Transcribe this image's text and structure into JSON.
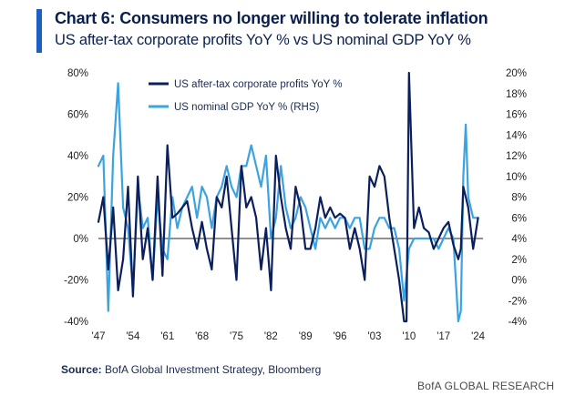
{
  "header": {
    "title": "Chart 6: Consumers no longer willing to tolerate inflation",
    "subtitle": "US after-tax corporate profits YoY % vs US nominal GDP YoY %"
  },
  "footer": {
    "source_label": "Source:",
    "source_text": "BofA Global Investment Strategy, Bloomberg",
    "brand": "BofA GLOBAL RESEARCH"
  },
  "chart_data": {
    "type": "line",
    "title": "Chart 6: Consumers no longer willing to tolerate inflation",
    "subtitle": "US after-tax corporate profits YoY % vs US nominal GDP YoY %",
    "x_ticks": [
      "'47",
      "'54",
      "'61",
      "'68",
      "'75",
      "'82",
      "'89",
      "'96",
      "'03",
      "'10",
      "'17",
      "'24"
    ],
    "x_tick_years": [
      1947,
      1954,
      1961,
      1968,
      1975,
      1982,
      1989,
      1996,
      2003,
      2010,
      2017,
      2024
    ],
    "xlim": [
      1947,
      2025
    ],
    "y_left": {
      "ticks": [
        "80%",
        "60%",
        "40%",
        "20%",
        "0%",
        "-20%",
        "-40%"
      ],
      "tick_values": [
        80,
        60,
        40,
        20,
        0,
        -20,
        -40
      ],
      "lim": [
        -40,
        80
      ]
    },
    "y_right": {
      "ticks": [
        "20%",
        "18%",
        "16%",
        "14%",
        "12%",
        "10%",
        "8%",
        "6%",
        "4%",
        "2%",
        "0%",
        "-2%",
        "-4%"
      ],
      "tick_values": [
        20,
        18,
        16,
        14,
        12,
        10,
        8,
        6,
        4,
        2,
        0,
        -2,
        -4
      ],
      "lim": [
        -4,
        20
      ]
    },
    "legend_position": "top-center",
    "grid": false,
    "series": [
      {
        "name": "US after-tax corporate profits YoY %",
        "axis": "left",
        "color": "#0b1f5c",
        "x": [
          1947,
          1948,
          1949,
          1950,
          1951,
          1952,
          1953,
          1954,
          1955,
          1956,
          1957,
          1958,
          1959,
          1960,
          1961,
          1962,
          1963,
          1964,
          1965,
          1966,
          1967,
          1968,
          1969,
          1970,
          1971,
          1972,
          1973,
          1974,
          1975,
          1976,
          1977,
          1978,
          1979,
          1980,
          1981,
          1982,
          1983,
          1984,
          1985,
          1986,
          1987,
          1988,
          1989,
          1990,
          1991,
          1992,
          1993,
          1994,
          1995,
          1996,
          1997,
          1998,
          1999,
          2000,
          2001,
          2002,
          2003,
          2004,
          2005,
          2006,
          2007,
          2008,
          2009,
          2009.5,
          2010,
          2011,
          2012,
          2013,
          2014,
          2015,
          2016,
          2017,
          2018,
          2019,
          2020,
          2020.5,
          2021,
          2022,
          2023,
          2024
        ],
        "y": [
          8,
          20,
          -15,
          15,
          -25,
          -10,
          25,
          -28,
          30,
          -10,
          5,
          -20,
          30,
          -18,
          45,
          10,
          12,
          15,
          18,
          5,
          -5,
          8,
          -5,
          -15,
          20,
          15,
          30,
          5,
          -20,
          35,
          15,
          20,
          10,
          -15,
          5,
          -25,
          40,
          20,
          5,
          -5,
          25,
          15,
          -5,
          -5,
          5,
          20,
          10,
          15,
          10,
          12,
          10,
          -5,
          5,
          -5,
          -20,
          30,
          25,
          35,
          30,
          10,
          -5,
          -20,
          -40,
          -40,
          80,
          5,
          15,
          5,
          3,
          -5,
          0,
          5,
          8,
          -3,
          -10,
          -5,
          25,
          15,
          -5,
          10
        ]
      },
      {
        "name": "US nominal GDP YoY % (RHS)",
        "axis": "right",
        "color": "#3aa3e0",
        "x": [
          1947,
          1948,
          1949,
          1950,
          1951,
          1952,
          1953,
          1954,
          1955,
          1956,
          1957,
          1958,
          1959,
          1960,
          1961,
          1962,
          1963,
          1964,
          1965,
          1966,
          1967,
          1968,
          1969,
          1970,
          1971,
          1972,
          1973,
          1974,
          1975,
          1976,
          1977,
          1978,
          1979,
          1980,
          1981,
          1982,
          1983,
          1984,
          1985,
          1986,
          1987,
          1988,
          1989,
          1990,
          1991,
          1992,
          1993,
          1994,
          1995,
          1996,
          1997,
          1998,
          1999,
          2000,
          2001,
          2002,
          2003,
          2004,
          2005,
          2006,
          2007,
          2008,
          2009,
          2010,
          2011,
          2012,
          2013,
          2014,
          2015,
          2016,
          2017,
          2018,
          2019,
          2020,
          2020.5,
          2021,
          2021.5,
          2022,
          2023,
          2024
        ],
        "y": [
          11,
          12,
          -3,
          12,
          19,
          7,
          5,
          -1,
          9,
          5,
          6,
          0,
          8,
          3,
          2,
          8,
          5,
          7,
          8,
          9,
          6,
          9,
          8,
          5,
          8,
          9,
          11,
          9,
          8,
          11,
          11,
          13,
          11,
          9,
          12,
          4,
          6,
          11,
          7,
          5,
          6,
          8,
          7,
          5,
          3,
          6,
          5,
          6,
          5,
          6,
          6,
          5,
          6,
          6,
          3,
          3,
          5,
          6,
          6,
          5,
          5,
          3,
          -2,
          3,
          4,
          4,
          4,
          4,
          4,
          3,
          4,
          5,
          4,
          -4,
          -3,
          10,
          15,
          8,
          6,
          6
        ]
      }
    ]
  }
}
